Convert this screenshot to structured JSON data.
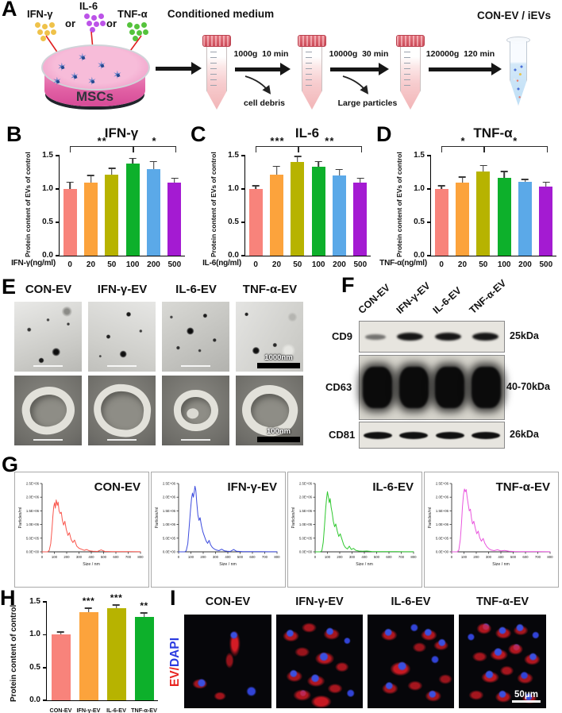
{
  "panels": {
    "A": {
      "letter": "A",
      "cytokines": [
        {
          "name": "IFN-γ",
          "color": "#EFC24A"
        },
        {
          "name": "IL-6",
          "color": "#BC53E8"
        },
        {
          "name": "TNF-α",
          "color": "#55C33C"
        }
      ],
      "or1": "or",
      "or2": "or",
      "dish_label": "MSCs",
      "conditioned_medium": "Conditioned medium",
      "steps": [
        {
          "speed": "1000g",
          "time": "10 min",
          "removes": "cell debris"
        },
        {
          "speed": "10000g",
          "time": "30 min",
          "removes": "Large particles"
        },
        {
          "speed": "120000g",
          "time": "120 min",
          "removes": ""
        }
      ],
      "result_label": "CON-EV / iEVs"
    },
    "B": {
      "letter": "B"
    },
    "C": {
      "letter": "C"
    },
    "D": {
      "letter": "D"
    },
    "E": {
      "letter": "E",
      "columns": [
        "CON-EV",
        "IFN-γ-EV",
        "IL-6-EV",
        "TNF-α-EV"
      ],
      "scalebar_top": "1000nm",
      "scalebar_bottom": "100nm"
    },
    "F": {
      "letter": "F",
      "columns": [
        "CON-EV",
        "IFN-γ-EV",
        "IL-6-EV",
        "TNF-α-EV"
      ],
      "rows": [
        {
          "marker": "CD9",
          "size": "25kDa"
        },
        {
          "marker": "CD63",
          "size": "40-70kDa"
        },
        {
          "marker": "CD81",
          "size": "26kDa"
        }
      ]
    },
    "G": {
      "letter": "G"
    },
    "H": {
      "letter": "H"
    },
    "I": {
      "letter": "I",
      "columns": [
        "CON-EV",
        "IFN-γ-EV",
        "IL-6-EV",
        "TNF-α-EV"
      ],
      "overlay_label_red": "EV/",
      "overlay_label_blue": "DAPI",
      "scalebar": "50μm"
    }
  },
  "chart_data": [
    {
      "id": "ifn_dose",
      "type": "bar",
      "title": "IFN-γ",
      "xlabel": "IFN-γ(ng/ml)",
      "ylabel": "Protein content of EVs of control",
      "categories": [
        "0",
        "20",
        "50",
        "100",
        "200",
        "500"
      ],
      "values": [
        1.0,
        1.1,
        1.22,
        1.38,
        1.3,
        1.09
      ],
      "errors": [
        0.11,
        0.11,
        0.1,
        0.09,
        0.12,
        0.08
      ],
      "ylim": [
        0,
        1.5
      ],
      "yticks": [
        "0.0",
        "0.5",
        "1.0",
        "1.5"
      ],
      "bar_colors": [
        "#F8837B",
        "#FCA33C",
        "#B7B300",
        "#0DB02B",
        "#5BA9E8",
        "#A41BD2"
      ],
      "significance": [
        {
          "label": "**",
          "from": 0,
          "to": 3
        },
        {
          "label": "*",
          "from": 3,
          "to": 5
        }
      ]
    },
    {
      "id": "il6_dose",
      "type": "bar",
      "title": "IL-6",
      "xlabel": "IL-6(ng/ml)",
      "ylabel": "Protein content of EVs of control",
      "categories": [
        "0",
        "20",
        "50",
        "100",
        "200",
        "500"
      ],
      "values": [
        1.0,
        1.22,
        1.41,
        1.33,
        1.2,
        1.1
      ],
      "errors": [
        0.06,
        0.13,
        0.09,
        0.09,
        0.1,
        0.07
      ],
      "ylim": [
        0,
        1.5
      ],
      "yticks": [
        "0.0",
        "0.5",
        "1.0",
        "1.5"
      ],
      "bar_colors": [
        "#F8837B",
        "#FCA33C",
        "#B7B300",
        "#0DB02B",
        "#5BA9E8",
        "#A41BD2"
      ],
      "significance": [
        {
          "label": "***",
          "from": 0,
          "to": 2
        },
        {
          "label": "**",
          "from": 2,
          "to": 5
        }
      ]
    },
    {
      "id": "tnf_dose",
      "type": "bar",
      "title": "TNF-α",
      "xlabel": "TNF-α(ng/ml)",
      "ylabel": "Protein content of EVs of control",
      "categories": [
        "0",
        "20",
        "50",
        "100",
        "200",
        "500"
      ],
      "values": [
        1.0,
        1.1,
        1.26,
        1.17,
        1.11,
        1.03
      ],
      "errors": [
        0.06,
        0.09,
        0.1,
        0.1,
        0.04,
        0.08
      ],
      "ylim": [
        0,
        1.5
      ],
      "yticks": [
        "0.0",
        "0.5",
        "1.0",
        "1.5"
      ],
      "bar_colors": [
        "#F8837B",
        "#FCA33C",
        "#B7B300",
        "#0DB02B",
        "#5BA9E8",
        "#A41BD2"
      ],
      "significance": [
        {
          "label": "*",
          "from": 0,
          "to": 2
        },
        {
          "label": "*",
          "from": 2,
          "to": 5
        }
      ]
    },
    {
      "id": "nta",
      "type": "line",
      "xlabel": "Size / nm",
      "ylabel": "Particles/ml",
      "xlim": [
        0,
        800
      ],
      "xticks": [
        0,
        100,
        200,
        300,
        400,
        500,
        600,
        700,
        800
      ],
      "ymax": 2500000,
      "yticks": [
        "0.0E+00",
        "5.0E+05",
        "1.0E+06",
        "1.5E+06",
        "2.0E+06",
        "2.5E+06"
      ],
      "series": [
        {
          "name": "CON-EV",
          "color": "#F9564D",
          "points": [
            [
              0,
              0
            ],
            [
              45,
              0
            ],
            [
              58,
              50000
            ],
            [
              70,
              300000
            ],
            [
              80,
              800000
            ],
            [
              88,
              1300000
            ],
            [
              95,
              1650000
            ],
            [
              102,
              1800000
            ],
            [
              108,
              1600000
            ],
            [
              115,
              1900000
            ],
            [
              123,
              1700000
            ],
            [
              130,
              1820000
            ],
            [
              138,
              1500000
            ],
            [
              147,
              1400000
            ],
            [
              156,
              1450000
            ],
            [
              165,
              1150000
            ],
            [
              175,
              980000
            ],
            [
              185,
              1120000
            ],
            [
              197,
              820000
            ],
            [
              210,
              600000
            ],
            [
              222,
              700000
            ],
            [
              236,
              450000
            ],
            [
              250,
              340000
            ],
            [
              264,
              430000
            ],
            [
              282,
              210000
            ],
            [
              300,
              130000
            ],
            [
              320,
              95000
            ],
            [
              342,
              55000
            ],
            [
              362,
              85000
            ],
            [
              385,
              35000
            ],
            [
              412,
              20000
            ],
            [
              450,
              15000
            ],
            [
              480,
              70000
            ],
            [
              510,
              15000
            ],
            [
              570,
              8000
            ],
            [
              640,
              10000
            ],
            [
              710,
              5000
            ],
            [
              800,
              4000
            ]
          ]
        },
        {
          "name": "IFN-γ-EV",
          "color": "#3D4CDE",
          "points": [
            [
              0,
              0
            ],
            [
              50,
              0
            ],
            [
              62,
              40000
            ],
            [
              75,
              300000
            ],
            [
              86,
              900000
            ],
            [
              96,
              1500000
            ],
            [
              105,
              1950000
            ],
            [
              113,
              2150000
            ],
            [
              120,
              2000000
            ],
            [
              127,
              2200000
            ],
            [
              133,
              2400000
            ],
            [
              140,
              2250000
            ],
            [
              148,
              1800000
            ],
            [
              157,
              1350000
            ],
            [
              166,
              1150000
            ],
            [
              175,
              1250000
            ],
            [
              186,
              950000
            ],
            [
              198,
              720000
            ],
            [
              210,
              560000
            ],
            [
              223,
              400000
            ],
            [
              236,
              310000
            ],
            [
              248,
              420000
            ],
            [
              260,
              260000
            ],
            [
              274,
              160000
            ],
            [
              290,
              105000
            ],
            [
              308,
              65000
            ],
            [
              328,
              45000
            ],
            [
              350,
              95000
            ],
            [
              372,
              35000
            ],
            [
              395,
              22000
            ],
            [
              420,
              15000
            ],
            [
              448,
              85000
            ],
            [
              470,
              20000
            ],
            [
              520,
              10000
            ],
            [
              590,
              8000
            ],
            [
              660,
              5000
            ],
            [
              730,
              4000
            ],
            [
              800,
              4000
            ]
          ]
        },
        {
          "name": "IL-6-EV",
          "color": "#2FC82F",
          "points": [
            [
              0,
              0
            ],
            [
              42,
              0
            ],
            [
              55,
              40000
            ],
            [
              66,
              350000
            ],
            [
              76,
              950000
            ],
            [
              85,
              1550000
            ],
            [
              93,
              1950000
            ],
            [
              100,
              2200000
            ],
            [
              108,
              2000000
            ],
            [
              115,
              1800000
            ],
            [
              122,
              1950000
            ],
            [
              130,
              1620000
            ],
            [
              139,
              1420000
            ],
            [
              148,
              1120000
            ],
            [
              158,
              920000
            ],
            [
              168,
              1020000
            ],
            [
              180,
              760000
            ],
            [
              192,
              560000
            ],
            [
              204,
              660000
            ],
            [
              218,
              460000
            ],
            [
              232,
              260000
            ],
            [
              246,
              160000
            ],
            [
              262,
              105000
            ],
            [
              278,
              205000
            ],
            [
              294,
              85000
            ],
            [
              312,
              125000
            ],
            [
              330,
              55000
            ],
            [
              355,
              30000
            ],
            [
              385,
              20000
            ],
            [
              420,
              30000
            ],
            [
              460,
              12000
            ],
            [
              510,
              10000
            ],
            [
              580,
              6000
            ],
            [
              660,
              5000
            ],
            [
              730,
              4000
            ],
            [
              800,
              4000
            ]
          ]
        },
        {
          "name": "TNF-α-EV",
          "color": "#E957DE",
          "points": [
            [
              0,
              0
            ],
            [
              45,
              0
            ],
            [
              58,
              60000
            ],
            [
              70,
              450000
            ],
            [
              80,
              1050000
            ],
            [
              88,
              1650000
            ],
            [
              96,
              2100000
            ],
            [
              104,
              2300000
            ],
            [
              111,
              2200000
            ],
            [
              118,
              2280000
            ],
            [
              126,
              2000000
            ],
            [
              134,
              1750000
            ],
            [
              143,
              1500000
            ],
            [
              152,
              1560000
            ],
            [
              161,
              1220000
            ],
            [
              170,
              1020000
            ],
            [
              180,
              1120000
            ],
            [
              192,
              860000
            ],
            [
              204,
              660000
            ],
            [
              216,
              760000
            ],
            [
              228,
              520000
            ],
            [
              242,
              390000
            ],
            [
              256,
              490000
            ],
            [
              270,
              310000
            ],
            [
              286,
              190000
            ],
            [
              303,
              110000
            ],
            [
              322,
              65000
            ],
            [
              345,
              45000
            ],
            [
              372,
              75000
            ],
            [
              400,
              32000
            ],
            [
              430,
              52000
            ],
            [
              465,
              22000
            ],
            [
              510,
              12000
            ],
            [
              570,
              10000
            ],
            [
              640,
              7000
            ],
            [
              710,
              5000
            ],
            [
              800,
              4000
            ]
          ]
        }
      ]
    },
    {
      "id": "protein_content",
      "type": "bar",
      "title": "",
      "xlabel": "",
      "ylabel": "Protein content of control",
      "categories": [
        "CON-EV",
        "IFN-γ-EV",
        "IL-6-EV",
        "TNF-α-EV"
      ],
      "values": [
        1.0,
        1.34,
        1.4,
        1.27
      ],
      "errors": [
        0.05,
        0.07,
        0.06,
        0.07
      ],
      "stars": [
        "",
        "***",
        "***",
        "**"
      ],
      "ylim": [
        0,
        1.5
      ],
      "yticks": [
        "0.0",
        "0.5",
        "1.0",
        "1.5"
      ],
      "bar_colors": [
        "#F8837B",
        "#FCA33C",
        "#B7B300",
        "#0DB02B"
      ]
    }
  ]
}
